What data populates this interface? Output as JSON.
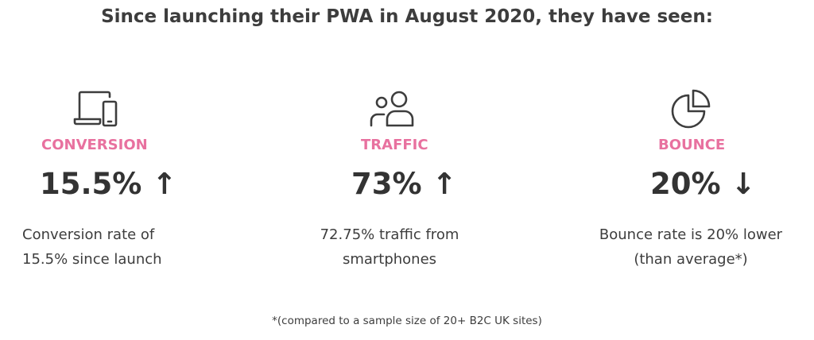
{
  "headline": "Since launching their PWA in August 2020, they have seen:",
  "accent_color": "#e8719f",
  "icon_color": "#3d3d3d",
  "stats": [
    {
      "icon": "devices-icon",
      "label": "CONVERSION",
      "value": "15.5% ↑",
      "desc": [
        "Conversion rate of",
        "15.5% since launch"
      ]
    },
    {
      "icon": "users-icon",
      "label": "TRAFFIC",
      "value": "73% ↑",
      "desc": [
        "72.75% traffic from",
        "smartphones"
      ]
    },
    {
      "icon": "pie-chart-icon",
      "label": "BOUNCE",
      "value": "20% ↓",
      "desc": [
        "Bounce rate is 20% lower",
        "(than average*)"
      ]
    }
  ],
  "footnote": "*(compared to a sample size of 20+ B2C UK sites)"
}
